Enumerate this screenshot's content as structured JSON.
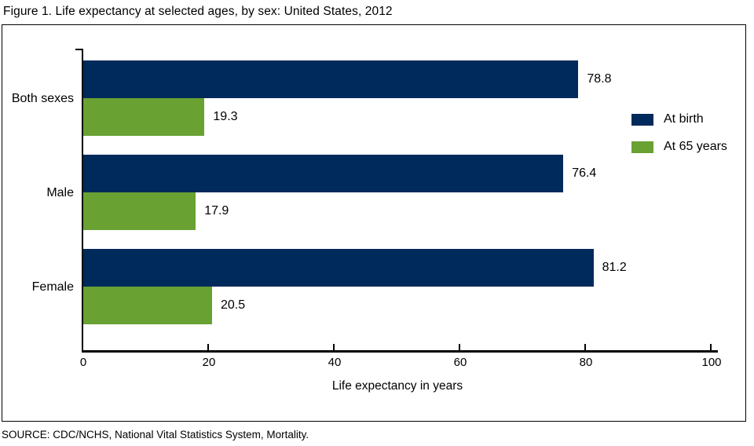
{
  "title": "Figure 1. Life expectancy at selected ages, by sex: United States, 2012",
  "source": "SOURCE: CDC/NCHS, National Vital Statistics System, Mortality.",
  "colors": {
    "at_birth": "#002a5c",
    "at_65_years": "#69a132",
    "axis": "#000000",
    "background": "#ffffff"
  },
  "chart_data": {
    "type": "bar",
    "orientation": "horizontal",
    "title": "Figure 1. Life expectancy at selected ages, by sex: United States, 2012",
    "categories": [
      "Both sexes",
      "Male",
      "Female"
    ],
    "series": [
      {
        "name": "At birth",
        "color": "#002a5c",
        "values": [
          78.8,
          76.4,
          81.2
        ]
      },
      {
        "name": "At 65 years",
        "color": "#69a132",
        "values": [
          19.3,
          17.9,
          20.5
        ]
      }
    ],
    "xlabel": "Life expectancy in years",
    "ylabel": "",
    "xlim": [
      0,
      100
    ],
    "xticks": [
      0,
      20,
      40,
      60,
      80,
      100
    ],
    "grid": false,
    "value_labels": true,
    "value_label_format": "one_decimal",
    "legend_position": "right"
  }
}
